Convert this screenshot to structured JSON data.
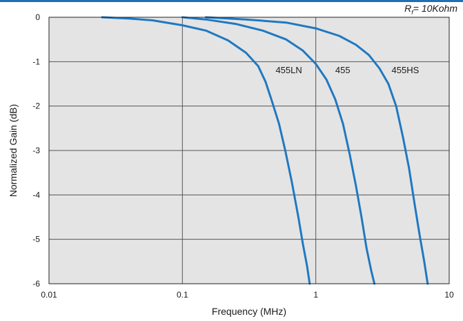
{
  "condition": {
    "prefix": "R",
    "subscript": "f",
    "suffix": "= 10Kohm"
  },
  "chart_data": {
    "type": "line",
    "xlabel": "Frequency (MHz)",
    "ylabel": "Normalized Gain (dB)",
    "x_scale": "log",
    "xlim": [
      0.01,
      10
    ],
    "ylim": [
      -6,
      0
    ],
    "x_ticks": [
      "0.01",
      "0.1",
      "1",
      "10"
    ],
    "y_ticks": [
      "0",
      "-1",
      "-2",
      "-3",
      "-4",
      "-5",
      "-6"
    ],
    "grid": true,
    "colors": {
      "line": "#1f78c1",
      "plot_bg": "#e4e4e4",
      "grid": "#555555",
      "accent": "#1f6fb5"
    },
    "series": [
      {
        "name": "455LN",
        "x": [
          0.025,
          0.04,
          0.06,
          0.1,
          0.15,
          0.22,
          0.3,
          0.37,
          0.42,
          0.47,
          0.53,
          0.59,
          0.66,
          0.74,
          0.8,
          0.86,
          0.9
        ],
        "y": [
          0,
          -0.03,
          -0.07,
          -0.18,
          -0.3,
          -0.52,
          -0.8,
          -1.1,
          -1.45,
          -1.9,
          -2.4,
          -3.0,
          -3.7,
          -4.5,
          -5.1,
          -5.6,
          -6.0
        ]
      },
      {
        "name": "455",
        "x": [
          0.1,
          0.15,
          0.25,
          0.4,
          0.6,
          0.8,
          1.0,
          1.2,
          1.4,
          1.6,
          1.8,
          2.0,
          2.2,
          2.4,
          2.6,
          2.75
        ],
        "y": [
          0,
          -0.05,
          -0.15,
          -0.3,
          -0.5,
          -0.75,
          -1.05,
          -1.4,
          -1.85,
          -2.4,
          -3.1,
          -3.8,
          -4.5,
          -5.2,
          -5.7,
          -6.0
        ]
      },
      {
        "name": "455HS",
        "x": [
          0.15,
          0.3,
          0.6,
          1.0,
          1.5,
          2.0,
          2.5,
          3.0,
          3.5,
          4.0,
          4.5,
          5.0,
          5.5,
          6.0,
          6.5,
          6.9
        ],
        "y": [
          0,
          -0.05,
          -0.12,
          -0.25,
          -0.42,
          -0.62,
          -0.85,
          -1.15,
          -1.5,
          -2.0,
          -2.7,
          -3.4,
          -4.2,
          -4.9,
          -5.5,
          -6.0
        ]
      }
    ],
    "label_positions_data": [
      {
        "series": "455LN",
        "x": 0.5,
        "y": -1.2
      },
      {
        "series": "455",
        "x": 1.4,
        "y": -1.2
      },
      {
        "series": "455HS",
        "x": 3.7,
        "y": -1.2
      }
    ]
  }
}
